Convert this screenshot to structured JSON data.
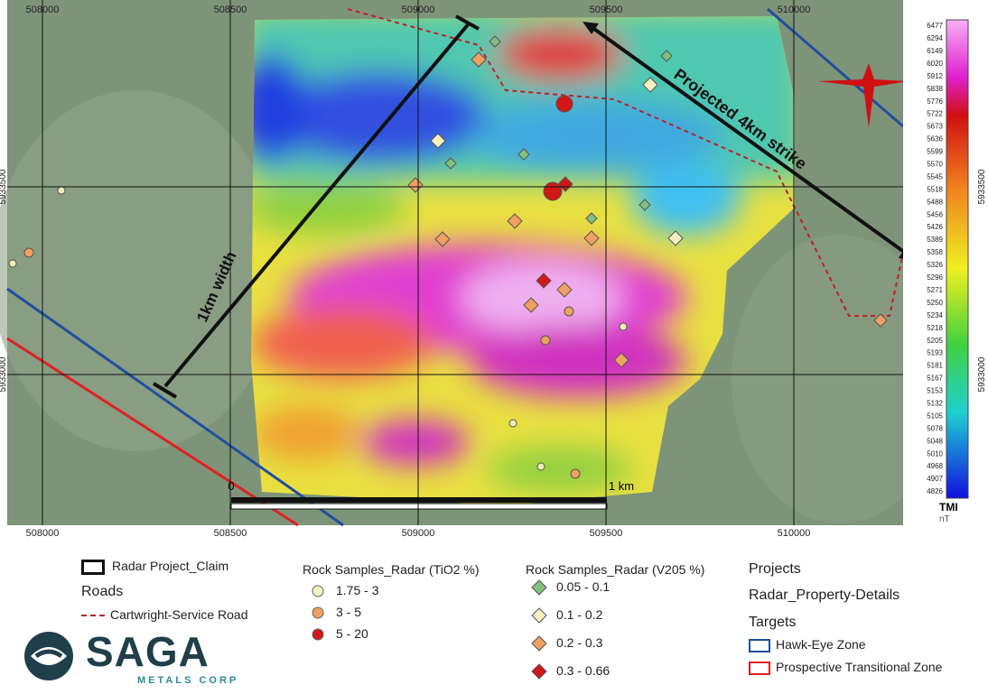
{
  "map": {
    "x_ticks": [
      508000,
      508500,
      509000,
      509500,
      510000
    ],
    "y_ticks": [
      5933500,
      5933000
    ],
    "annotations": {
      "width": "1km width",
      "strike": "Projected 4km strike"
    },
    "scale_bar": {
      "start": "0",
      "end": "1 km"
    },
    "colorbar": {
      "title": "TMI",
      "unit": "nT",
      "labels": [
        6477,
        6294,
        6149,
        6020,
        5912,
        5838,
        5776,
        5722,
        5673,
        5636,
        5599,
        5570,
        5545,
        5518,
        5488,
        5456,
        5426,
        5389,
        5358,
        5326,
        5296,
        5271,
        5250,
        5234,
        5218,
        5205,
        5193,
        5181,
        5167,
        5153,
        5132,
        5105,
        5078,
        5048,
        5010,
        4968,
        4907,
        4826
      ]
    }
  },
  "legend": {
    "claim": "Radar Project_Claim",
    "roads": "Roads",
    "road": "Cartwright-Service Road",
    "tio2": {
      "title": "Rock Samples_Radar (TiO2 %)",
      "items": [
        "1.75 - 3",
        "3 - 5",
        "5 - 20"
      ]
    },
    "v2o5": {
      "title": "Rock Samples_Radar (V205 %)",
      "items": [
        "0.05 - 0.1",
        "0.1 - 0.2",
        "0.2 - 0.3",
        "0.3 - 0.66"
      ]
    },
    "projects": "Projects",
    "property": "Radar_Property-Details",
    "targets": "Targets",
    "hawk": "Hawk-Eye Zone",
    "transitional": "Prospective Transitional Zone"
  },
  "logo": {
    "name": "SAGA",
    "subtitle": "METALS CORP"
  }
}
